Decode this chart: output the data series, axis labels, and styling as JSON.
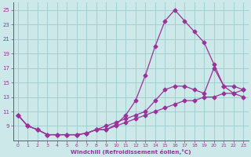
{
  "xlabel": "Windchill (Refroidissement éolien,°C)",
  "bg_color": "#cce8e8",
  "grid_color": "#99cccc",
  "line_color": "#993399",
  "xlim": [
    -0.5,
    23.5
  ],
  "ylim": [
    7,
    26
  ],
  "xticks": [
    0,
    1,
    2,
    3,
    4,
    5,
    6,
    7,
    8,
    9,
    10,
    11,
    12,
    13,
    14,
    15,
    16,
    17,
    18,
    19,
    20,
    21,
    22,
    23
  ],
  "yticks": [
    9,
    11,
    13,
    15,
    17,
    19,
    21,
    23,
    25
  ],
  "ytick_labels": [
    "9",
    "11",
    "13",
    "15",
    "17",
    "19",
    "21",
    "23",
    "25"
  ],
  "line1_x": [
    0,
    1,
    2,
    3,
    4,
    5,
    6,
    7,
    8,
    9,
    10,
    11,
    12,
    13,
    14,
    15,
    16,
    17,
    18,
    19,
    20,
    21,
    22,
    23
  ],
  "line1_y": [
    10.5,
    9.0,
    8.5,
    7.8,
    7.8,
    7.8,
    7.8,
    8.0,
    8.5,
    8.5,
    9.2,
    10.5,
    12.5,
    16.0,
    20.0,
    23.5,
    25.0,
    23.5,
    22.0,
    20.5,
    17.5,
    14.5,
    13.5,
    13.0
  ],
  "line2_x": [
    0,
    1,
    2,
    3,
    4,
    5,
    6,
    7,
    8,
    9,
    10,
    11,
    12,
    13,
    14,
    15,
    16,
    17,
    18,
    19,
    20,
    21,
    22,
    23
  ],
  "line2_y": [
    10.5,
    9.0,
    8.5,
    7.8,
    7.8,
    7.8,
    7.8,
    8.0,
    8.5,
    9.0,
    9.5,
    10.0,
    10.5,
    11.0,
    12.5,
    14.0,
    14.5,
    14.5,
    14.0,
    13.5,
    17.0,
    14.5,
    14.5,
    14.0
  ],
  "line3_x": [
    0,
    1,
    2,
    3,
    4,
    5,
    6,
    7,
    8,
    9,
    10,
    11,
    12,
    13,
    14,
    15,
    16,
    17,
    18,
    19,
    20,
    21,
    22,
    23
  ],
  "line3_y": [
    10.5,
    9.0,
    8.5,
    7.8,
    7.8,
    7.8,
    7.8,
    8.0,
    8.5,
    8.5,
    9.0,
    9.5,
    10.0,
    10.5,
    11.0,
    11.5,
    12.0,
    12.5,
    12.5,
    13.0,
    13.0,
    13.5,
    13.5,
    14.0
  ]
}
